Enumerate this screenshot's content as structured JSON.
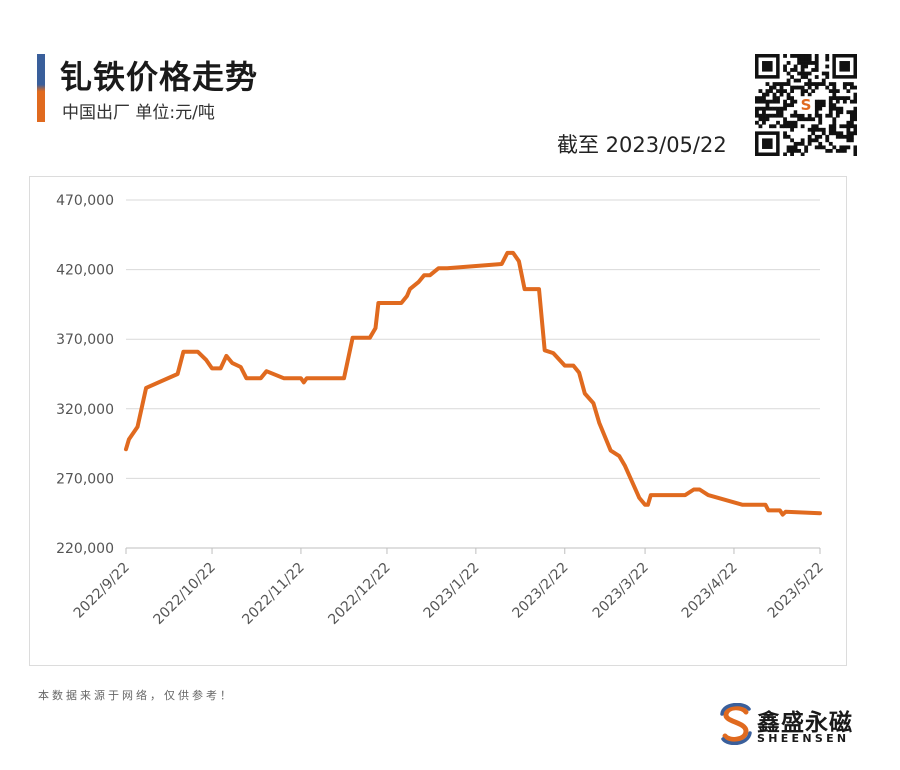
{
  "header": {
    "title": "钆铁价格走势",
    "subtitle": "中国出厂  单位:元/吨",
    "as_of": "截至 2023/05/22"
  },
  "footer": {
    "note": "本数据来源于网络，仅供参考！",
    "brand_cn": "鑫盛永磁",
    "brand_en": "SHEENSEN"
  },
  "colors": {
    "series": "#e06a1f",
    "accent_top": "#3a5f9b",
    "accent_bottom": "#e06a1f",
    "grid": "#d9d9d9"
  },
  "chart_data": {
    "type": "line",
    "title": "",
    "xlabel": "",
    "ylabel": "",
    "ylim": [
      220000,
      470000
    ],
    "yticks": [
      220000,
      270000,
      320000,
      370000,
      420000,
      470000
    ],
    "ytick_labels": [
      "220,000",
      "270,000",
      "320,000",
      "370,000",
      "420,000",
      "470,000"
    ],
    "xticks": [
      "2022/9/22",
      "2022/10/22",
      "2022/11/22",
      "2022/12/22",
      "2023/1/22",
      "2023/2/22",
      "2023/3/22",
      "2023/4/22",
      "2023/5/22"
    ],
    "grid": "horizontal",
    "legend": "none",
    "series": [
      {
        "x": [
          "2022-09-22",
          "2022-09-23",
          "2022-09-26",
          "2022-09-29",
          "2022-10-10",
          "2022-10-12",
          "2022-10-17",
          "2022-10-20",
          "2022-10-22",
          "2022-10-25",
          "2022-10-27",
          "2022-10-29",
          "2022-11-01",
          "2022-11-03",
          "2022-11-08",
          "2022-11-10",
          "2022-11-16",
          "2022-11-22",
          "2022-11-23",
          "2022-11-24",
          "2022-11-28",
          "2022-12-07",
          "2022-12-10",
          "2022-12-16",
          "2022-12-18",
          "2022-12-19",
          "2022-12-27",
          "2022-12-29",
          "2022-12-30",
          "2023-01-02",
          "2023-01-04",
          "2023-01-06",
          "2023-01-09",
          "2023-01-12",
          "2023-01-31",
          "2023-02-02",
          "2023-02-04",
          "2023-02-06",
          "2023-02-08",
          "2023-02-13",
          "2023-02-15",
          "2023-02-18",
          "2023-02-22",
          "2023-02-25",
          "2023-02-27",
          "2023-03-01",
          "2023-03-04",
          "2023-03-06",
          "2023-03-10",
          "2023-03-13",
          "2023-03-15",
          "2023-03-20",
          "2023-03-22",
          "2023-03-23",
          "2023-03-24",
          "2023-03-30",
          "2023-03-31",
          "2023-04-05",
          "2023-04-08",
          "2023-04-10",
          "2023-04-13",
          "2023-04-25",
          "2023-04-26",
          "2023-05-03",
          "2023-05-04",
          "2023-05-08",
          "2023-05-09",
          "2023-05-10",
          "2023-05-22"
        ],
        "y": [
          291000,
          298000,
          307000,
          335000,
          345000,
          361000,
          361000,
          355000,
          349000,
          349000,
          358000,
          353000,
          350000,
          342000,
          342000,
          347000,
          342000,
          342000,
          339000,
          342000,
          342000,
          342000,
          371000,
          371000,
          378000,
          396000,
          396000,
          401000,
          406000,
          411000,
          416000,
          416000,
          421000,
          421000,
          424000,
          432000,
          432000,
          426000,
          406000,
          406000,
          362000,
          360000,
          351000,
          351000,
          346000,
          331000,
          324000,
          310000,
          290000,
          286000,
          279000,
          256000,
          251000,
          251000,
          258000,
          258000,
          258000,
          258000,
          262000,
          262000,
          258000,
          251000,
          251000,
          251000,
          247000,
          247000,
          244000,
          246000,
          245000
        ]
      }
    ]
  }
}
